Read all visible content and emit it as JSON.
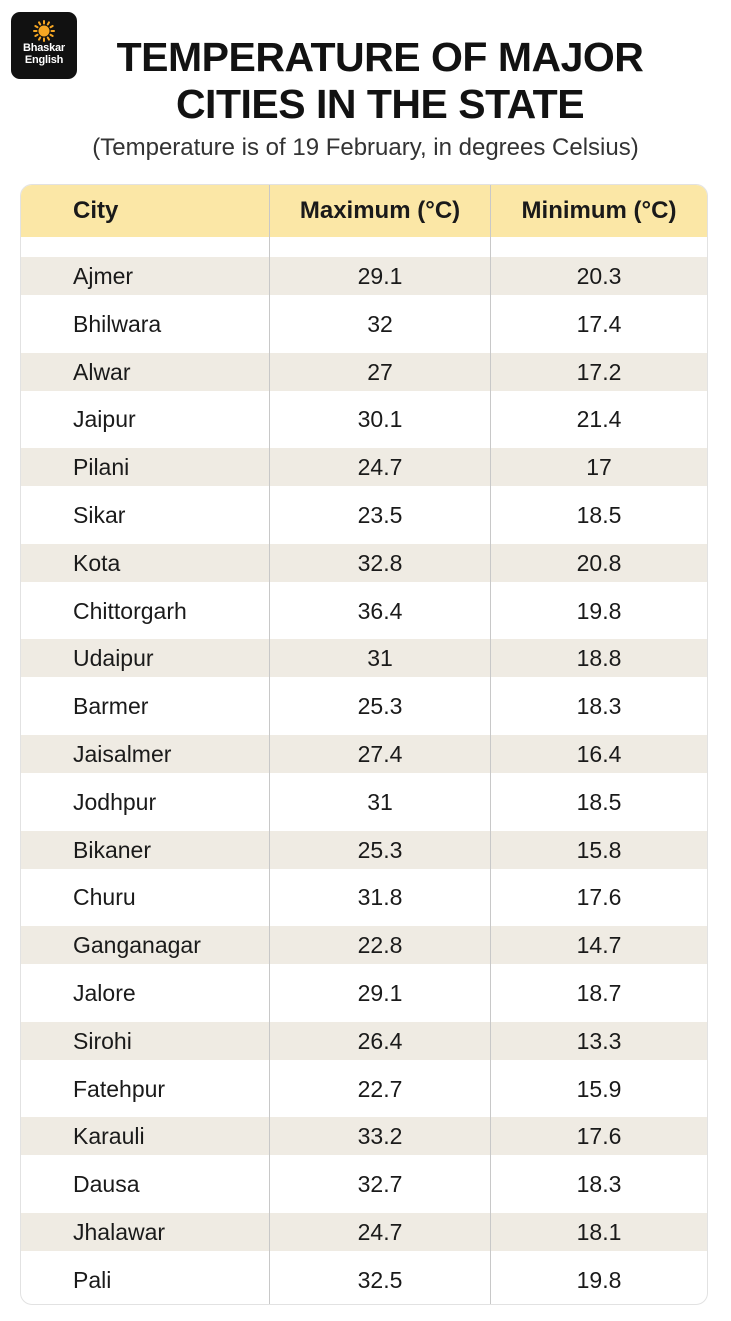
{
  "logo": {
    "line1": "Bhaskar",
    "line2": "English",
    "accent": "#f5a623"
  },
  "title": {
    "line1": "TEMPERATURE OF MAJOR",
    "line2": "CITIES IN THE STATE"
  },
  "subtitle": "(Temperature is of 19 February, in degrees Celsius)",
  "colors": {
    "header_bg": "#fbe7a6",
    "stripe": "#efebe3"
  },
  "chart_data": {
    "type": "table",
    "title": "TEMPERATURE OF MAJOR CITIES IN THE STATE",
    "subtitle": "(Temperature is of 19 February, in degrees Celsius)",
    "columns": [
      "City",
      "Maximum (°C)",
      "Minimum (°C)"
    ],
    "rows": [
      [
        "Ajmer",
        "29.1",
        "20.3"
      ],
      [
        "Bhilwara",
        "32",
        "17.4"
      ],
      [
        "Alwar",
        "27",
        "17.2"
      ],
      [
        "Jaipur",
        "30.1",
        "21.4"
      ],
      [
        "Pilani",
        "24.7",
        "17"
      ],
      [
        "Sikar",
        "23.5",
        "18.5"
      ],
      [
        "Kota",
        "32.8",
        "20.8"
      ],
      [
        "Chittorgarh",
        "36.4",
        "19.8"
      ],
      [
        "Udaipur",
        "31",
        "18.8"
      ],
      [
        "Barmer",
        "25.3",
        "18.3"
      ],
      [
        "Jaisalmer",
        "27.4",
        "16.4"
      ],
      [
        "Jodhpur",
        "31",
        "18.5"
      ],
      [
        "Bikaner",
        "25.3",
        "15.8"
      ],
      [
        "Churu",
        "31.8",
        "17.6"
      ],
      [
        "Ganganagar",
        "22.8",
        "14.7"
      ],
      [
        "Jalore",
        "29.1",
        "18.7"
      ],
      [
        "Sirohi",
        "26.4",
        "13.3"
      ],
      [
        "Fatehpur",
        "22.7",
        "15.9"
      ],
      [
        "Karauli",
        "33.2",
        "17.6"
      ],
      [
        "Dausa",
        "32.7",
        "18.3"
      ],
      [
        "Jhalawar",
        "24.7",
        "18.1"
      ],
      [
        "Pali",
        "32.5",
        "19.8"
      ]
    ]
  }
}
